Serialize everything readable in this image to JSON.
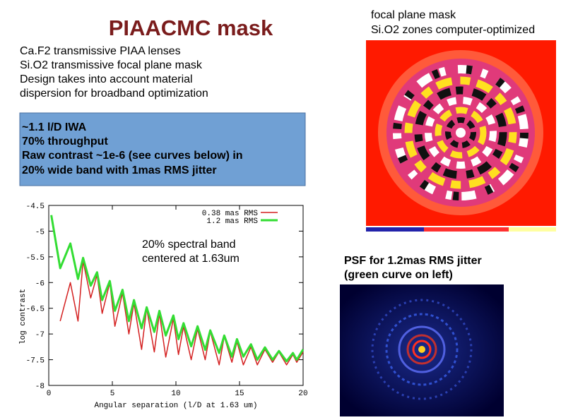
{
  "title": "PIAACMC mask",
  "notes": [
    "Ca.F2 transmissive PIAA lenses",
    "Si.O2 transmissive focal plane mask",
    "Design takes into account material",
    "dispersion for broadband optimization"
  ],
  "box": [
    "~1.1 l/D IWA",
    "70% throughput",
    "Raw contrast ~1e-6 (see curves below) in",
    "20% wide band with 1mas RMS jitter"
  ],
  "mask_caption": [
    "focal plane mask",
    "Si.O2 zones computer-optimized"
  ],
  "psf_caption": [
    "PSF for 1.2mas RMS jitter",
    "(green curve on left)"
  ],
  "chart_data": {
    "type": "line",
    "x_label": "Angular separation (l/D at 1.63 um)",
    "y_label": "log contrast",
    "annotation": [
      "20% spectral band",
      "centered at 1.63um"
    ],
    "legend": "upper right",
    "xlim": [
      0,
      20
    ],
    "xticks": [
      0,
      5,
      10,
      15,
      20
    ],
    "ylim": [
      -8,
      -4.5
    ],
    "yticks": [
      -4.5,
      -5,
      -5.5,
      -6,
      -6.5,
      -7,
      -7.5,
      -8
    ],
    "x": [
      0.2,
      0.9,
      1.7,
      2.3,
      2.7,
      3.3,
      3.8,
      4.2,
      4.8,
      5.2,
      5.8,
      6.3,
      6.7,
      7.3,
      7.7,
      8.3,
      8.7,
      9.2,
      9.8,
      10.2,
      10.6,
      11.2,
      11.7,
      12.3,
      12.7,
      13.4,
      13.8,
      14.4,
      14.8,
      15.3,
      15.9,
      16.4,
      17.0,
      17.6,
      18.1,
      18.7,
      19.2,
      19.5,
      20.0
    ],
    "series": [
      {
        "name": "0.38 mas RMS",
        "color": "#d42020",
        "values": [
          null,
          -6.75,
          -6.0,
          -6.75,
          -5.58,
          -6.3,
          -5.85,
          -6.6,
          -6.0,
          -6.85,
          -6.2,
          -7.0,
          -6.4,
          -7.3,
          -6.5,
          -7.35,
          -6.6,
          -7.45,
          -6.7,
          -7.4,
          -6.85,
          -7.5,
          -6.9,
          -7.5,
          -6.95,
          -7.6,
          -7.05,
          -7.55,
          -7.15,
          -7.6,
          -7.25,
          -7.6,
          -7.3,
          -7.55,
          -7.35,
          -7.6,
          -7.4,
          -7.55,
          -7.35
        ]
      },
      {
        "name": "1.2 mas RMS",
        "color": "#33dd33",
        "values": [
          -4.69,
          -5.72,
          -5.24,
          -5.93,
          -5.52,
          -6.06,
          -5.8,
          -6.34,
          -5.97,
          -6.55,
          -6.14,
          -6.75,
          -6.34,
          -6.89,
          -6.48,
          -6.96,
          -6.55,
          -7.03,
          -6.64,
          -7.1,
          -6.79,
          -7.24,
          -6.85,
          -7.31,
          -6.93,
          -7.37,
          -7.03,
          -7.44,
          -7.1,
          -7.44,
          -7.2,
          -7.5,
          -7.26,
          -7.5,
          -7.33,
          -7.53,
          -7.37,
          -7.5,
          -7.3
        ]
      }
    ]
  }
}
